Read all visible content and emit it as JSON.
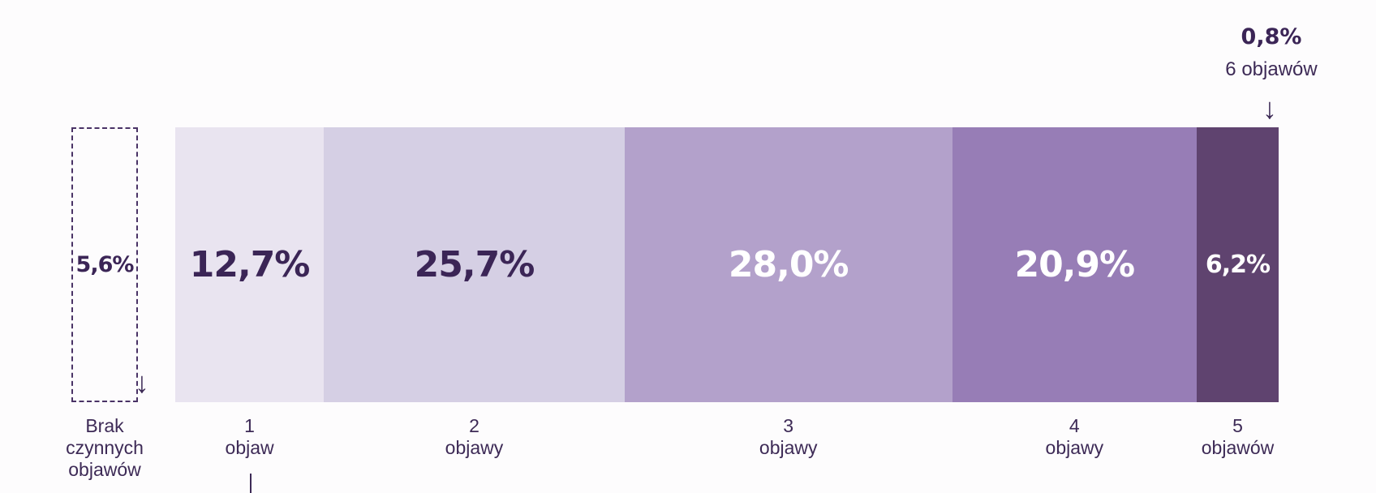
{
  "chart_data": {
    "type": "bar",
    "title": "",
    "xlabel": "",
    "ylabel": "",
    "unit": "%",
    "categories": [
      "Brak czynnych objawów",
      "1 objaw",
      "2 objawy",
      "3 objawy",
      "4 objawy",
      "5 objawów",
      "6 objawów"
    ],
    "values": [
      5.6,
      12.7,
      25.7,
      28.0,
      20.9,
      6.2,
      0.8
    ],
    "none_category": {
      "label": "Brak\nczynnych\nobjawów",
      "display": "5,6%",
      "value": 5.6
    },
    "segments": [
      {
        "label": "1\nobjaw",
        "display": "12,7%",
        "value": 12.7,
        "color": "#e9e4f0",
        "text_color": "#3b2556"
      },
      {
        "label": "2\nobjawy",
        "display": "25,7%",
        "value": 25.7,
        "color": "#d5cfe4",
        "text_color": "#3b2556"
      },
      {
        "label": "3\nobjawy",
        "display": "28,0%",
        "value": 28.0,
        "color": "#b3a1cb",
        "text_color": "#ffffff"
      },
      {
        "label": "4\nobjawy",
        "display": "20,9%",
        "value": 20.9,
        "color": "#977db6",
        "text_color": "#ffffff"
      },
      {
        "label": "5\nobjawów",
        "display": "6,2%",
        "value": 6.2,
        "color": "#5f436f",
        "text_color": "#ffffff"
      }
    ],
    "callout": {
      "label": "6 objawów",
      "display": "0,8%",
      "value": 0.8
    }
  }
}
